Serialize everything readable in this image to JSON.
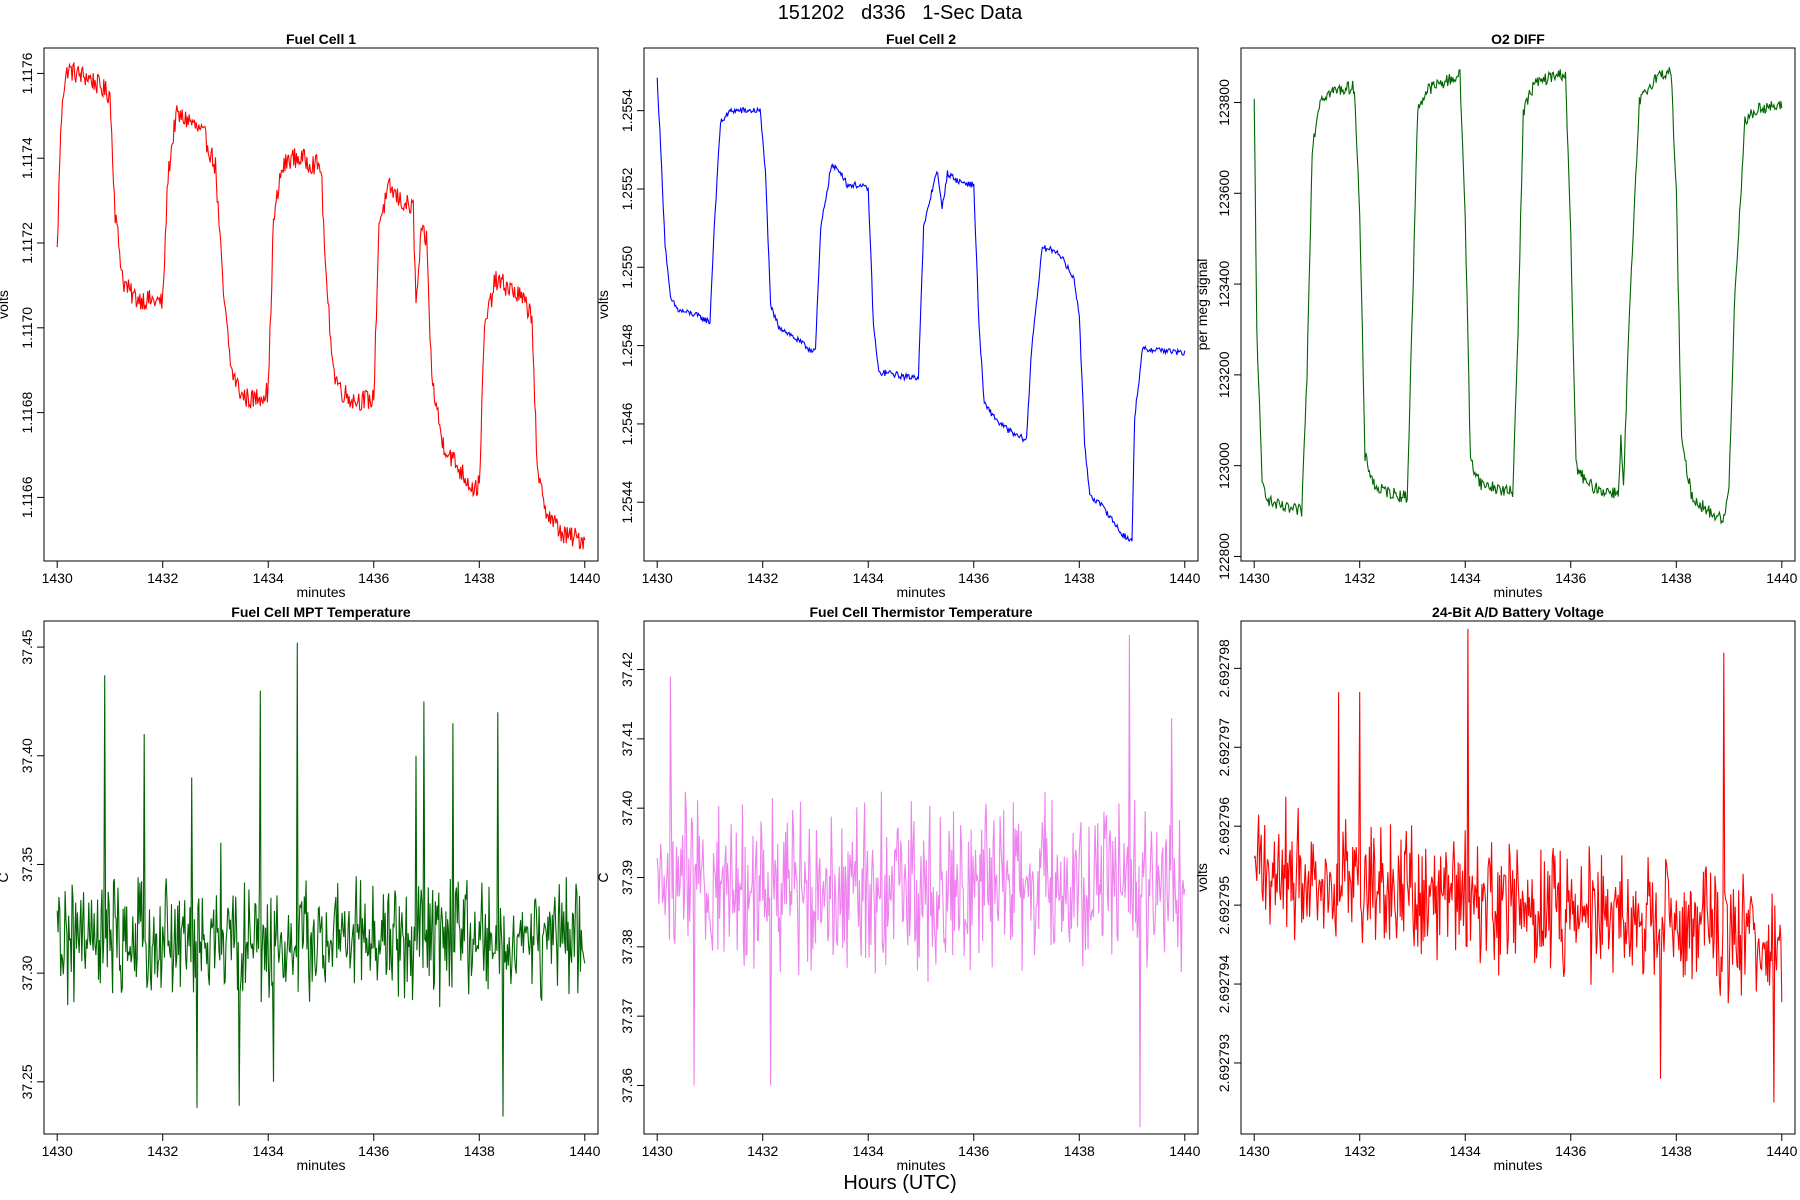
{
  "figure": {
    "title": "151202   d336   1-Sec Data",
    "xlabel": "Hours (UTC)"
  },
  "chart_data": [
    {
      "type": "line",
      "title": "Fuel Cell 1",
      "xlabel": "minutes",
      "ylabel": "volts",
      "color": "#ff0000",
      "xlim": [
        1429.75,
        1440.25
      ],
      "ylim": [
        1.11645,
        1.11766
      ],
      "xticks": [
        1430,
        1432,
        1434,
        1436,
        1438,
        1440
      ],
      "xtick_labels": [
        "1430",
        "1432",
        "1434",
        "1436",
        "1438",
        "1440"
      ],
      "yticks": [
        1.1166,
        1.1168,
        1.117,
        1.1172,
        1.1174,
        1.1176
      ],
      "ytick_labels": [
        "1.1166",
        "1.1168",
        "1.1170",
        "1.1172",
        "1.1174",
        "1.1176"
      ],
      "noise": 2.5e-05,
      "x": [
        1430.0,
        1430.05,
        1430.1,
        1430.2,
        1430.35,
        1430.6,
        1431.0,
        1431.1,
        1431.25,
        1431.4,
        1431.5,
        1432.0,
        1432.1,
        1432.25,
        1432.5,
        1432.8,
        1433.0,
        1433.15,
        1433.3,
        1433.5,
        1433.7,
        1434.0,
        1434.1,
        1434.25,
        1434.4,
        1434.6,
        1435.0,
        1435.1,
        1435.25,
        1435.4,
        1435.6,
        1436.0,
        1436.1,
        1436.3,
        1436.5,
        1436.75,
        1436.8,
        1436.9,
        1437.0,
        1437.1,
        1437.3,
        1437.6,
        1437.9,
        1438.0,
        1438.1,
        1438.3,
        1438.5,
        1438.8,
        1439.0,
        1439.1,
        1439.3,
        1439.6,
        1440.0
      ],
      "values": [
        1.11718,
        1.1174,
        1.11755,
        1.11761,
        1.1176,
        1.11759,
        1.11755,
        1.11727,
        1.11711,
        1.11708,
        1.11707,
        1.11706,
        1.11736,
        1.1175,
        1.11749,
        1.11745,
        1.11738,
        1.11708,
        1.1169,
        1.11684,
        1.11683,
        1.11685,
        1.11725,
        1.11737,
        1.1174,
        1.1174,
        1.11738,
        1.1171,
        1.11689,
        1.11685,
        1.11683,
        1.11683,
        1.11725,
        1.11733,
        1.1173,
        1.11728,
        1.11705,
        1.11722,
        1.11721,
        1.11688,
        1.11673,
        1.11667,
        1.11662,
        1.11663,
        1.117,
        1.11711,
        1.1171,
        1.11707,
        1.11703,
        1.11665,
        1.11656,
        1.11651,
        1.1165
      ]
    },
    {
      "type": "line",
      "title": "Fuel Cell 2",
      "xlabel": "minutes",
      "ylabel": "volts",
      "color": "#0000ff",
      "xlim": [
        1429.75,
        1440.25
      ],
      "ylim": [
        1.25425,
        1.25556
      ],
      "xticks": [
        1430,
        1432,
        1434,
        1436,
        1438,
        1440
      ],
      "xtick_labels": [
        "1430",
        "1432",
        "1434",
        "1436",
        "1438",
        "1440"
      ],
      "yticks": [
        1.2544,
        1.2546,
        1.2548,
        1.255,
        1.2552,
        1.2554
      ],
      "ytick_labels": [
        "1.2544",
        "1.2546",
        "1.2548",
        "1.2550",
        "1.2552",
        "1.2554"
      ],
      "noise": 8e-06,
      "x": [
        1430.0,
        1430.05,
        1430.15,
        1430.25,
        1430.4,
        1430.7,
        1431.0,
        1431.08,
        1431.2,
        1431.4,
        1431.7,
        1431.95,
        1432.05,
        1432.15,
        1432.3,
        1432.6,
        1432.9,
        1433.0,
        1433.1,
        1433.3,
        1433.5,
        1433.6,
        1433.8,
        1434.0,
        1434.1,
        1434.2,
        1434.4,
        1434.7,
        1434.95,
        1435.05,
        1435.3,
        1435.4,
        1435.5,
        1435.7,
        1436.0,
        1436.1,
        1436.2,
        1436.5,
        1436.8,
        1437.0,
        1437.1,
        1437.3,
        1437.6,
        1437.9,
        1438.0,
        1438.1,
        1438.2,
        1438.5,
        1438.8,
        1439.0,
        1439.05,
        1439.2,
        1439.5,
        1440.0
      ],
      "values": [
        1.25548,
        1.25535,
        1.25506,
        1.25492,
        1.25489,
        1.25488,
        1.25486,
        1.2551,
        1.25537,
        1.2554,
        1.2554,
        1.2554,
        1.25525,
        1.2549,
        1.25485,
        1.25482,
        1.25479,
        1.25479,
        1.2551,
        1.25526,
        1.25524,
        1.25521,
        1.25521,
        1.2552,
        1.25485,
        1.25473,
        1.25473,
        1.25472,
        1.25472,
        1.2551,
        1.25525,
        1.25515,
        1.25524,
        1.25522,
        1.25521,
        1.25485,
        1.25465,
        1.2546,
        1.25457,
        1.25456,
        1.2548,
        1.25505,
        1.25504,
        1.25497,
        1.25488,
        1.25455,
        1.25442,
        1.25438,
        1.25432,
        1.2543,
        1.25462,
        1.25479,
        1.25479,
        1.25478
      ]
    },
    {
      "type": "line",
      "title": "O2 DIFF",
      "xlabel": "minutes",
      "ylabel": "per meg signal",
      "color": "#006400",
      "xlim": [
        1429.75,
        1440.25
      ],
      "ylim": [
        122790,
        123920
      ],
      "xticks": [
        1430,
        1432,
        1434,
        1436,
        1438,
        1440
      ],
      "xtick_labels": [
        "1430",
        "1432",
        "1434",
        "1436",
        "1438",
        "1440"
      ],
      "yticks": [
        122800,
        123000,
        123200,
        123400,
        123600,
        123800
      ],
      "ytick_labels": [
        "122800",
        "123000",
        "123200",
        "123400",
        "123600",
        "123800"
      ],
      "noise": 14,
      "x": [
        1430.0,
        1430.05,
        1430.15,
        1430.3,
        1430.6,
        1430.9,
        1431.0,
        1431.1,
        1431.25,
        1431.5,
        1431.9,
        1432.0,
        1432.1,
        1432.3,
        1432.6,
        1432.9,
        1433.0,
        1433.1,
        1433.3,
        1433.6,
        1433.9,
        1434.0,
        1434.1,
        1434.3,
        1434.6,
        1434.9,
        1435.0,
        1435.1,
        1435.3,
        1435.6,
        1435.9,
        1436.0,
        1436.1,
        1436.3,
        1436.6,
        1436.9,
        1436.95,
        1437.0,
        1437.1,
        1437.3,
        1437.6,
        1437.9,
        1438.0,
        1438.1,
        1438.3,
        1438.6,
        1438.9,
        1439.0,
        1439.1,
        1439.3,
        1439.6,
        1440.0
      ],
      "values": [
        123800,
        123300,
        122960,
        122920,
        122905,
        122900,
        123200,
        123700,
        123810,
        123825,
        123835,
        123550,
        123020,
        122950,
        122940,
        122930,
        123350,
        123790,
        123830,
        123845,
        123860,
        123550,
        123010,
        122960,
        122950,
        122940,
        123300,
        123780,
        123840,
        123855,
        123865,
        123500,
        123000,
        122960,
        122945,
        122940,
        123060,
        122950,
        123300,
        123800,
        123855,
        123870,
        123600,
        123050,
        122930,
        122900,
        122880,
        122950,
        123350,
        123760,
        123790,
        123790
      ]
    },
    {
      "type": "line",
      "title": "Fuel Cell MPT Temperature",
      "xlabel": "minutes",
      "ylabel": "C",
      "color": "#006400",
      "xlim": [
        1429.75,
        1440.25
      ],
      "ylim": [
        37.226,
        37.462
      ],
      "xticks": [
        1430,
        1432,
        1434,
        1436,
        1438,
        1440
      ],
      "xtick_labels": [
        "1430",
        "1432",
        "1434",
        "1436",
        "1438",
        "1440"
      ],
      "yticks": [
        37.25,
        37.3,
        37.35,
        37.4,
        37.45
      ],
      "ytick_labels": [
        "37.25",
        "37.30",
        "37.35",
        "37.40",
        "37.45"
      ],
      "baseline": 37.315,
      "noise": 0.02,
      "spikes": [
        [
          1430.9,
          37.437
        ],
        [
          1431.65,
          37.41
        ],
        [
          1432.55,
          37.39
        ],
        [
          1433.1,
          37.36
        ],
        [
          1433.85,
          37.43
        ],
        [
          1434.55,
          37.452
        ],
        [
          1436.8,
          37.4
        ],
        [
          1436.95,
          37.425
        ],
        [
          1437.5,
          37.415
        ],
        [
          1438.35,
          37.42
        ],
        [
          1432.65,
          37.238
        ],
        [
          1433.45,
          37.239
        ],
        [
          1438.45,
          37.234
        ],
        [
          1434.1,
          37.25
        ]
      ]
    },
    {
      "type": "line",
      "title": "Fuel Cell Thermistor Temperature",
      "xlabel": "minutes",
      "ylabel": "C",
      "color": "#ee82ee",
      "xlim": [
        1429.75,
        1440.25
      ],
      "ylim": [
        37.353,
        37.427
      ],
      "xticks": [
        1430,
        1432,
        1434,
        1436,
        1438,
        1440
      ],
      "xtick_labels": [
        "1430",
        "1432",
        "1434",
        "1436",
        "1438",
        "1440"
      ],
      "yticks": [
        37.36,
        37.37,
        37.38,
        37.39,
        37.4,
        37.41,
        37.42
      ],
      "ytick_labels": [
        "37.36",
        "37.37",
        "37.38",
        "37.39",
        "37.40",
        "37.41",
        "37.42"
      ],
      "baseline": 37.389,
      "noise": 0.009,
      "spikes": [
        [
          1430.25,
          37.419
        ],
        [
          1438.95,
          37.425
        ],
        [
          1439.15,
          37.354
        ],
        [
          1430.7,
          37.36
        ],
        [
          1432.15,
          37.36
        ],
        [
          1439.75,
          37.413
        ]
      ]
    },
    {
      "type": "line",
      "title": "24-Bit A/D Battery Voltage",
      "xlabel": "minutes",
      "ylabel": "volts",
      "color": "#ff0000",
      "xlim": [
        1429.75,
        1440.25
      ],
      "ylim": [
        2.6927921,
        2.6927986
      ],
      "xticks": [
        1430,
        1432,
        1434,
        1436,
        1438,
        1440
      ],
      "xtick_labels": [
        "1430",
        "1432",
        "1434",
        "1436",
        "1438",
        "1440"
      ],
      "yticks": [
        2.692793,
        2.692794,
        2.692795,
        2.692796,
        2.692797,
        2.692798
      ],
      "ytick_labels": [
        "2.692793",
        "2.692794",
        "2.692795",
        "2.692796",
        "2.692797",
        "2.692798"
      ],
      "baseline_start": 2.6927955,
      "baseline_end": 2.6927945,
      "noise": 6e-07,
      "spikes": [
        [
          1434.05,
          2.6927985
        ],
        [
          1438.9,
          2.6927982
        ],
        [
          1431.6,
          2.6927977
        ],
        [
          1432.0,
          2.6927977
        ],
        [
          1439.85,
          2.6927925
        ],
        [
          1437.7,
          2.6927928
        ]
      ]
    }
  ]
}
